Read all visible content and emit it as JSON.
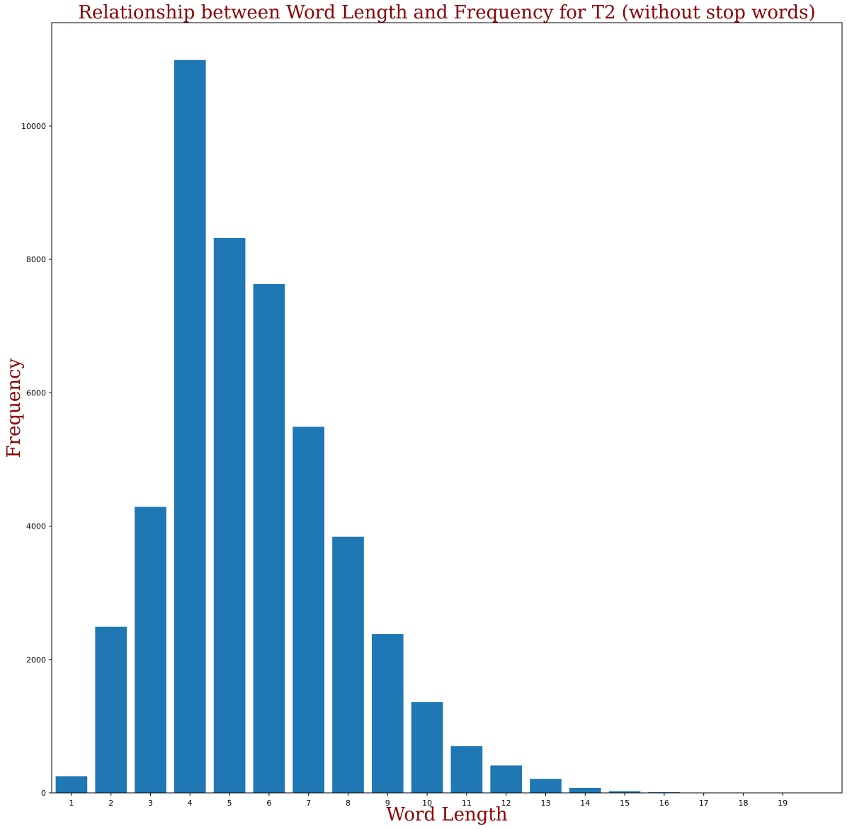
{
  "chart_data": {
    "type": "bar",
    "title": "Relationship between Word Length and Frequency for T2 (without stop words)",
    "xlabel": "Word Length",
    "ylabel": "Frequency",
    "categories": [
      "1",
      "2",
      "3",
      "4",
      "5",
      "6",
      "7",
      "8",
      "9",
      "10",
      "11",
      "12",
      "13",
      "14",
      "15",
      "16",
      "17",
      "18",
      "19"
    ],
    "values": [
      250,
      2490,
      4290,
      10990,
      8320,
      7630,
      5490,
      3840,
      2380,
      1360,
      700,
      410,
      210,
      75,
      25,
      10,
      5,
      2,
      1
    ],
    "ylim": [
      0,
      11550
    ],
    "xlim": [
      -0.5,
      19.5
    ],
    "yticks": [
      0,
      2000,
      4000,
      6000,
      8000,
      10000
    ],
    "grid": false,
    "legend": "none",
    "bar_color": "#1f77b4",
    "label_color": "#8b0000"
  }
}
